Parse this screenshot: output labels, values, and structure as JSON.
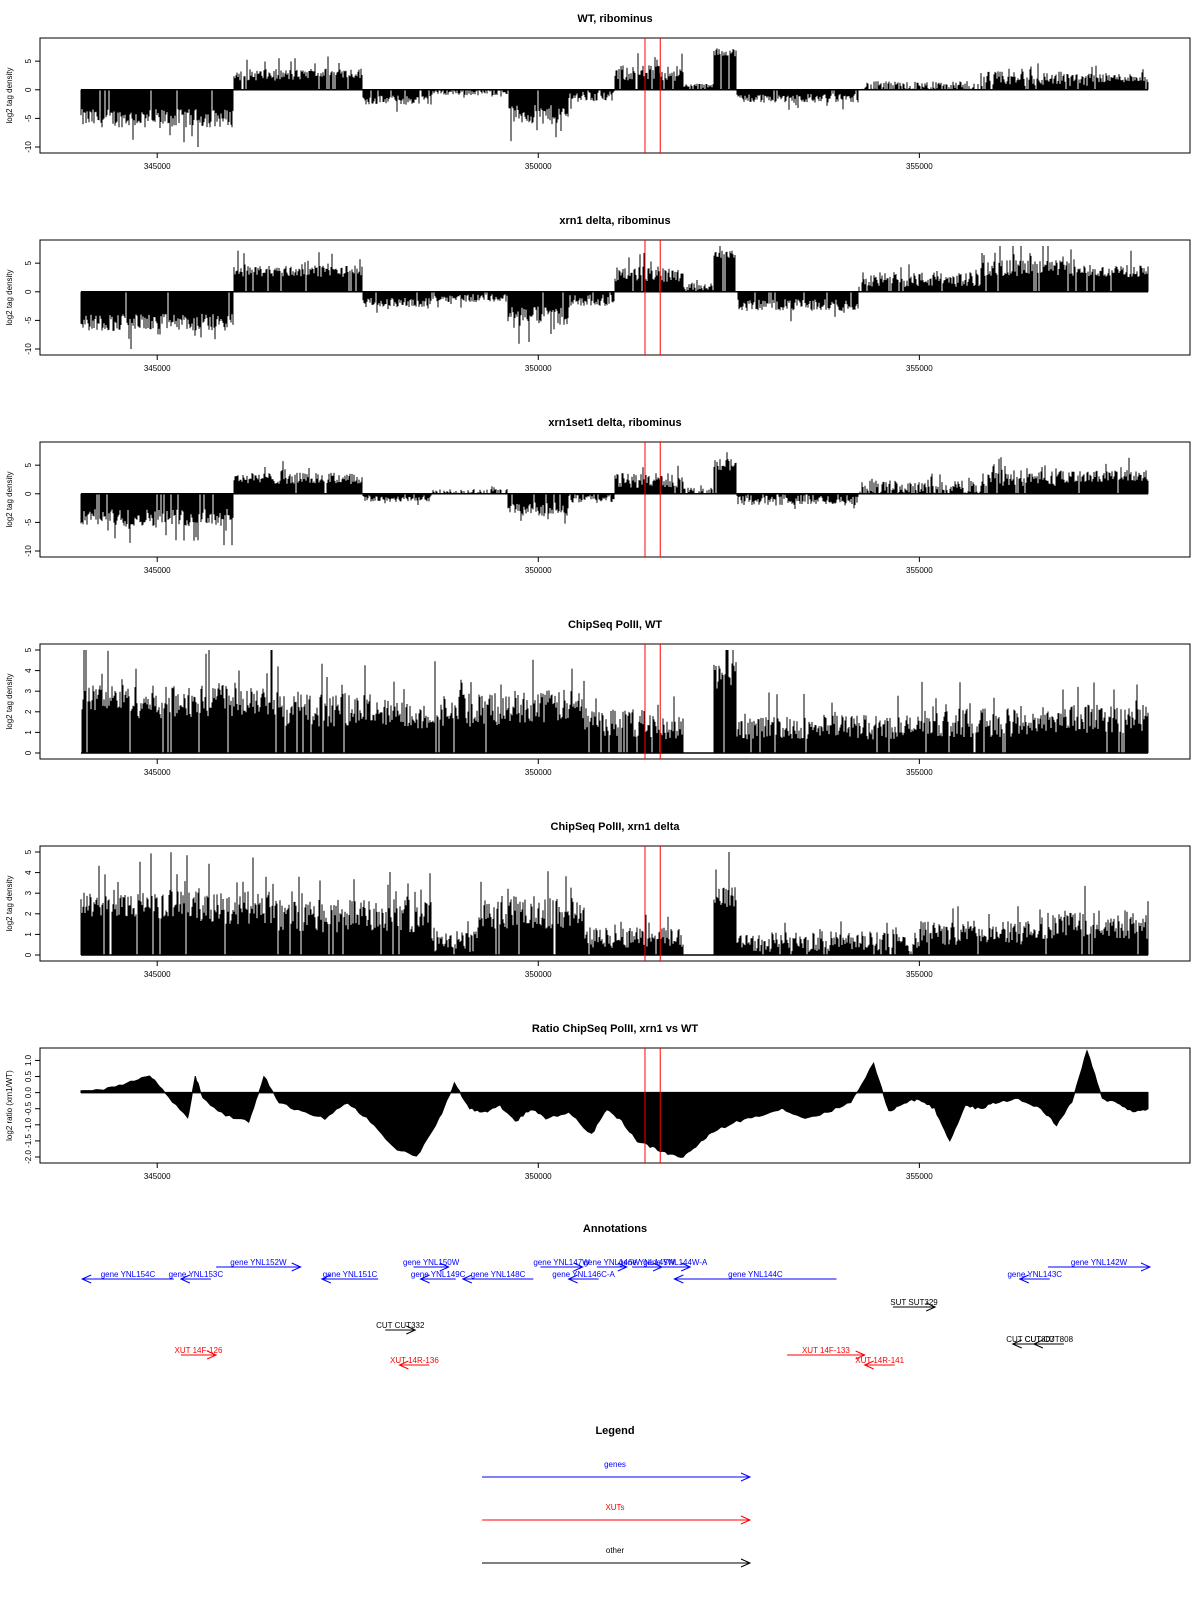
{
  "chart_data": [
    {
      "type": "bar",
      "title": "WT, ribominus",
      "ylabel": "log2 tag density",
      "xlim": [
        344000,
        358000
      ],
      "ylim": [
        -10,
        8
      ],
      "xticks": [
        345000,
        350000,
        355000
      ],
      "yticks": [
        -10,
        -5,
        0,
        5
      ],
      "ytick_labels": [
        "-10",
        "-5",
        "0",
        "5"
      ],
      "vlines": [
        351400,
        351600
      ],
      "vline_color": "#ff0000",
      "fill_color": "#000000",
      "profile": [
        {
          "x": [
            344000,
            346000
          ],
          "y": -4.8,
          "jitter": 3.2
        },
        {
          "x": [
            346000,
            347000
          ],
          "y": 2.5,
          "jitter": 2.0
        },
        {
          "x": [
            347000,
            347700
          ],
          "y": 2.8,
          "jitter": 1.8
        },
        {
          "x": [
            347700,
            348600
          ],
          "y": -1.7,
          "jitter": 1.6
        },
        {
          "x": [
            348600,
            349600
          ],
          "y": -0.3,
          "jitter": 1.2
        },
        {
          "x": [
            349600,
            350400
          ],
          "y": -4.2,
          "jitter": 3.4
        },
        {
          "x": [
            350400,
            351000
          ],
          "y": -1.1,
          "jitter": 1.8
        },
        {
          "x": [
            351000,
            351900
          ],
          "y": 2.8,
          "jitter": 2.8
        },
        {
          "x": [
            351900,
            352300
          ],
          "y": 0.5,
          "jitter": 1.2
        },
        {
          "x": [
            352300,
            352600
          ],
          "y": 6.5,
          "jitter": 1.4
        },
        {
          "x": [
            352600,
            354200
          ],
          "y": -1.4,
          "jitter": 1.6
        },
        {
          "x": [
            354200,
            355800
          ],
          "y": 0.4,
          "jitter": 2.0
        },
        {
          "x": [
            355800,
            357200
          ],
          "y": 1.8,
          "jitter": 2.6
        },
        {
          "x": [
            357200,
            358000
          ],
          "y": 2.0,
          "jitter": 1.6
        }
      ]
    },
    {
      "type": "bar",
      "title": "xrn1 delta, ribominus",
      "ylabel": "log2 tag density",
      "xlim": [
        344000,
        358000
      ],
      "ylim": [
        -10,
        8
      ],
      "xticks": [
        345000,
        350000,
        355000
      ],
      "yticks": [
        -10,
        -5,
        0,
        5
      ],
      "ytick_labels": [
        "-10",
        "-5",
        "0",
        "5"
      ],
      "vlines": [
        351400,
        351600
      ],
      "vline_color": "#ff0000",
      "fill_color": "#000000",
      "profile": [
        {
          "x": [
            344000,
            346000
          ],
          "y": -5.2,
          "jitter": 3.0
        },
        {
          "x": [
            346000,
            347700
          ],
          "y": 3.5,
          "jitter": 2.0
        },
        {
          "x": [
            347700,
            348600
          ],
          "y": -1.8,
          "jitter": 1.6
        },
        {
          "x": [
            348600,
            349600
          ],
          "y": -1.0,
          "jitter": 1.4
        },
        {
          "x": [
            349600,
            350400
          ],
          "y": -4.0,
          "jitter": 3.2
        },
        {
          "x": [
            350400,
            351000
          ],
          "y": -1.4,
          "jitter": 2.0
        },
        {
          "x": [
            351000,
            351900
          ],
          "y": 3.0,
          "jitter": 2.8
        },
        {
          "x": [
            351900,
            352300
          ],
          "y": 0.8,
          "jitter": 1.2
        },
        {
          "x": [
            352300,
            352600
          ],
          "y": 6.5,
          "jitter": 1.3
        },
        {
          "x": [
            352600,
            354200
          ],
          "y": -2.2,
          "jitter": 2.0
        },
        {
          "x": [
            354200,
            355800
          ],
          "y": 2.0,
          "jitter": 2.6
        },
        {
          "x": [
            355800,
            357000
          ],
          "y": 4.0,
          "jitter": 2.8
        },
        {
          "x": [
            357000,
            358000
          ],
          "y": 3.5,
          "jitter": 2.2
        }
      ]
    },
    {
      "type": "bar",
      "title": "xrn1set1 delta, ribominus",
      "ylabel": "log2 tag density",
      "xlim": [
        344000,
        358000
      ],
      "ylim": [
        -10,
        8
      ],
      "xticks": [
        345000,
        350000,
        355000
      ],
      "yticks": [
        -10,
        -5,
        0,
        5
      ],
      "ytick_labels": [
        "-10",
        "-5",
        "0",
        "5"
      ],
      "vlines": [
        351400,
        351600
      ],
      "vline_color": "#ff0000",
      "fill_color": "#000000",
      "profile": [
        {
          "x": [
            344000,
            346000
          ],
          "y": -4.0,
          "jitter": 3.0
        },
        {
          "x": [
            346000,
            347700
          ],
          "y": 2.6,
          "jitter": 2.0
        },
        {
          "x": [
            347700,
            348600
          ],
          "y": -0.8,
          "jitter": 1.2
        },
        {
          "x": [
            348600,
            349600
          ],
          "y": 0.2,
          "jitter": 1.2
        },
        {
          "x": [
            349600,
            350400
          ],
          "y": -2.6,
          "jitter": 2.4
        },
        {
          "x": [
            350400,
            351000
          ],
          "y": -0.8,
          "jitter": 1.6
        },
        {
          "x": [
            351000,
            351900
          ],
          "y": 2.2,
          "jitter": 2.6
        },
        {
          "x": [
            351900,
            352300
          ],
          "y": 0.4,
          "jitter": 1.2
        },
        {
          "x": [
            352300,
            352600
          ],
          "y": 5.0,
          "jitter": 2.2
        },
        {
          "x": [
            352600,
            354200
          ],
          "y": -1.0,
          "jitter": 1.8
        },
        {
          "x": [
            354200,
            355800
          ],
          "y": 1.0,
          "jitter": 2.4
        },
        {
          "x": [
            355800,
            357000
          ],
          "y": 2.6,
          "jitter": 2.8
        },
        {
          "x": [
            357000,
            358000
          ],
          "y": 3.0,
          "jitter": 2.0
        }
      ]
    },
    {
      "type": "bar",
      "title": "ChipSeq PolII, WT",
      "ylabel": "log2 tag density",
      "xlim": [
        344000,
        358000
      ],
      "ylim": [
        0,
        5
      ],
      "xticks": [
        345000,
        350000,
        355000
      ],
      "yticks": [
        0,
        1,
        2,
        3,
        4,
        5
      ],
      "ytick_labels": [
        "0",
        "1",
        "2",
        "3",
        "4",
        "5"
      ],
      "vlines": [
        351400,
        351600
      ],
      "vline_color": "#ff0000",
      "fill_color": "#000000",
      "profile": [
        {
          "x": [
            344000,
            344700
          ],
          "y": 2.6,
          "jitter": 1.4
        },
        {
          "x": [
            344700,
            345600
          ],
          "y": 2.4,
          "jitter": 1.6
        },
        {
          "x": [
            345600,
            346600
          ],
          "y": 2.6,
          "jitter": 1.8
        },
        {
          "x": [
            346600,
            347800
          ],
          "y": 2.0,
          "jitter": 1.6
        },
        {
          "x": [
            347800,
            348600
          ],
          "y": 1.8,
          "jitter": 1.4
        },
        {
          "x": [
            348600,
            349600
          ],
          "y": 2.0,
          "jitter": 1.6
        },
        {
          "x": [
            349600,
            350600
          ],
          "y": 2.2,
          "jitter": 1.6
        },
        {
          "x": [
            350600,
            351400
          ],
          "y": 1.4,
          "jitter": 1.4
        },
        {
          "x": [
            351400,
            351900
          ],
          "y": 1.2,
          "jitter": 1.2
        },
        {
          "x": [
            351900,
            352000
          ],
          "y": 0.0,
          "jitter": 0
        },
        {
          "x": [
            352000,
            352300
          ],
          "y": 0.0,
          "jitter": 0
        },
        {
          "x": [
            352300,
            352600
          ],
          "y": 3.6,
          "jitter": 1.6
        },
        {
          "x": [
            352600,
            355000
          ],
          "y": 1.2,
          "jitter": 1.2
        },
        {
          "x": [
            355000,
            356600
          ],
          "y": 1.4,
          "jitter": 1.4
        },
        {
          "x": [
            356600,
            358000
          ],
          "y": 1.6,
          "jitter": 1.4
        }
      ]
    },
    {
      "type": "bar",
      "title": "ChipSeq PolII, xrn1 delta",
      "ylabel": "log2 tag density",
      "xlim": [
        344000,
        358000
      ],
      "ylim": [
        0,
        5
      ],
      "xticks": [
        345000,
        350000,
        355000
      ],
      "yticks": [
        0,
        1,
        2,
        3,
        4,
        5
      ],
      "ytick_labels": [
        "0",
        "1",
        "2",
        "3",
        "4",
        "5"
      ],
      "vlines": [
        351400,
        351600
      ],
      "vline_color": "#ff0000",
      "fill_color": "#000000",
      "profile": [
        {
          "x": [
            344000,
            344700
          ],
          "y": 2.4,
          "jitter": 1.2
        },
        {
          "x": [
            344700,
            345500
          ],
          "y": 2.4,
          "jitter": 1.4
        },
        {
          "x": [
            345500,
            346500
          ],
          "y": 2.2,
          "jitter": 1.6
        },
        {
          "x": [
            346500,
            347600
          ],
          "y": 1.8,
          "jitter": 1.6
        },
        {
          "x": [
            347600,
            348600
          ],
          "y": 1.8,
          "jitter": 1.6
        },
        {
          "x": [
            348600,
            349200
          ],
          "y": 0.6,
          "jitter": 1.0
        },
        {
          "x": [
            349200,
            350600
          ],
          "y": 2.0,
          "jitter": 1.6
        },
        {
          "x": [
            350600,
            351900
          ],
          "y": 0.8,
          "jitter": 1.0
        },
        {
          "x": [
            351900,
            352300
          ],
          "y": 0.0,
          "jitter": 0
        },
        {
          "x": [
            352300,
            352600
          ],
          "y": 2.8,
          "jitter": 1.2
        },
        {
          "x": [
            352600,
            355000
          ],
          "y": 0.6,
          "jitter": 1.0
        },
        {
          "x": [
            355000,
            356600
          ],
          "y": 1.0,
          "jitter": 1.2
        },
        {
          "x": [
            356600,
            358000
          ],
          "y": 1.4,
          "jitter": 1.4
        }
      ]
    },
    {
      "type": "area",
      "title": "Ratio ChipSeq PolII, xrn1 vs WT",
      "ylabel": "log2 ratio (xrn1/WT)",
      "xlim": [
        344000,
        358000
      ],
      "ylim": [
        -2,
        1.2
      ],
      "xticks": [
        345000,
        350000,
        355000
      ],
      "yticks": [
        -2,
        -1.5,
        -1,
        -0.5,
        0,
        0.5,
        1
      ],
      "ytick_labels": [
        "-2.0",
        "-1.5",
        "-1.0",
        "-0.5",
        "0.0",
        "0.5",
        "1.0"
      ],
      "vlines": [
        351400,
        351600
      ],
      "vline_color": "#ff0000",
      "fill_color": "#000000",
      "x": [
        344000,
        344300,
        344600,
        344900,
        345100,
        345400,
        345500,
        345600,
        345900,
        346200,
        346400,
        346600,
        346900,
        347200,
        347500,
        347800,
        348100,
        348400,
        348700,
        348900,
        349100,
        349300,
        349500,
        349700,
        349900,
        350100,
        350400,
        350700,
        350900,
        351100,
        351300,
        351500,
        351700,
        351900,
        352100,
        352300,
        352600,
        352900,
        353200,
        353500,
        353800,
        354100,
        354400,
        354600,
        354800,
        355000,
        355200,
        355400,
        355600,
        355800,
        356000,
        356300,
        356600,
        356800,
        357000,
        357200,
        357400,
        357600,
        357800,
        358000
      ],
      "y": [
        0.05,
        0.1,
        0.3,
        0.55,
        0.0,
        -0.8,
        0.5,
        -0.2,
        -0.7,
        -0.9,
        0.5,
        -0.3,
        -0.6,
        -0.8,
        -0.3,
        -0.9,
        -1.7,
        -2.0,
        -0.8,
        0.3,
        -0.5,
        -0.6,
        -0.4,
        -0.9,
        -0.5,
        -0.8,
        -0.6,
        -1.3,
        -0.5,
        -0.9,
        -1.5,
        -1.7,
        -1.9,
        -2.0,
        -1.6,
        -1.2,
        -0.9,
        -0.7,
        -0.5,
        -0.8,
        -0.6,
        -0.3,
        0.9,
        -0.6,
        -0.3,
        -0.2,
        -0.5,
        -1.5,
        -0.4,
        -0.5,
        -0.3,
        -0.2,
        -0.5,
        -1.0,
        -0.3,
        1.3,
        -0.2,
        -0.3,
        -0.6,
        -0.5
      ]
    }
  ],
  "annotations": {
    "title": "Annotations",
    "xlim": [
      344000,
      358000
    ],
    "features": [
      {
        "label": "gene YNL154C",
        "color": "#0000ff",
        "start": 344300,
        "end": 345600,
        "dir": "left",
        "row": 1
      },
      {
        "label": "gene YNL153C",
        "color": "#0000ff",
        "start": 345700,
        "end": 346100,
        "dir": "left",
        "row": 1
      },
      {
        "label": "gene YNL152W",
        "color": "#0000ff",
        "start": 346200,
        "end": 347400,
        "dir": "right",
        "row": 0
      },
      {
        "label": "gene YNL151C",
        "color": "#0000ff",
        "start": 347700,
        "end": 348500,
        "dir": "left",
        "row": 1
      },
      {
        "label": "gene YNL150W",
        "color": "#0000ff",
        "start": 349000,
        "end": 349500,
        "dir": "right",
        "row": 0
      },
      {
        "label": "gene YNL149C",
        "color": "#0000ff",
        "start": 349100,
        "end": 349600,
        "dir": "left",
        "row": 1
      },
      {
        "label": "gene YNL148C",
        "color": "#0000ff",
        "start": 349700,
        "end": 350700,
        "dir": "left",
        "row": 1
      },
      {
        "label": "gene YNL147W",
        "color": "#0000ff",
        "start": 350800,
        "end": 351400,
        "dir": "right",
        "row": 0
      },
      {
        "label": "gene YNL146C-A",
        "color": "#0000ff",
        "start": 351200,
        "end": 351600,
        "dir": "left",
        "row": 1
      },
      {
        "label": "gene YNL146W",
        "color": "#0000ff",
        "start": 351600,
        "end": 352000,
        "dir": "right",
        "row": 0
      },
      {
        "label": "gene YNL145W",
        "color": "#0000ff",
        "start": 352100,
        "end": 352400,
        "dir": "right",
        "row": 0
      },
      {
        "label": "gene YNL144W-A",
        "color": "#0000ff",
        "start": 352500,
        "end": 352700,
        "dir": "right",
        "row": 0
      },
      {
        "label": "gene YNL144C",
        "color": "#0000ff",
        "start": 352700,
        "end": 355000,
        "dir": "left",
        "row": 1
      },
      {
        "label": "gene YNL143C",
        "color": "#0000ff",
        "start": 357600,
        "end": 358000,
        "dir": "left",
        "row": 1
      },
      {
        "label": "gene YNL142W",
        "color": "#0000ff",
        "start": 358000,
        "end": 360700,
        "dir": "right",
        "row": 0
      },
      {
        "label": "SUT SUT329",
        "color": "#000000",
        "start": 355800,
        "end": 356400,
        "dir": "right",
        "row": 2
      },
      {
        "label": "CUT CUT332",
        "color": "#000000",
        "start": 348600,
        "end": 349000,
        "dir": "right",
        "row": 3
      },
      {
        "label": "CUT CUT807",
        "color": "#000000",
        "start": 357500,
        "end": 358000,
        "dir": "left",
        "row": 4
      },
      {
        "label": "CUT CUT808",
        "color": "#000000",
        "start": 357800,
        "end": 358000,
        "dir": "left",
        "row": 4
      },
      {
        "label": "XUT 14F-126",
        "color": "#ff0000",
        "start": 345700,
        "end": 346200,
        "dir": "right",
        "row": 5
      },
      {
        "label": "XUT 14R-136",
        "color": "#ff0000",
        "start": 348800,
        "end": 349200,
        "dir": "left",
        "row": 6
      },
      {
        "label": "XUT 14F-133",
        "color": "#ff0000",
        "start": 354300,
        "end": 355400,
        "dir": "right",
        "row": 5
      },
      {
        "label": "XUT 14R-141",
        "color": "#ff0000",
        "start": 355400,
        "end": 355800,
        "dir": "left",
        "row": 6
      }
    ]
  },
  "legend": {
    "title": "Legend",
    "items": [
      {
        "label": "genes",
        "color": "#0000ff"
      },
      {
        "label": "XUTs",
        "color": "#ff0000"
      },
      {
        "label": "other",
        "color": "#000000"
      }
    ]
  }
}
